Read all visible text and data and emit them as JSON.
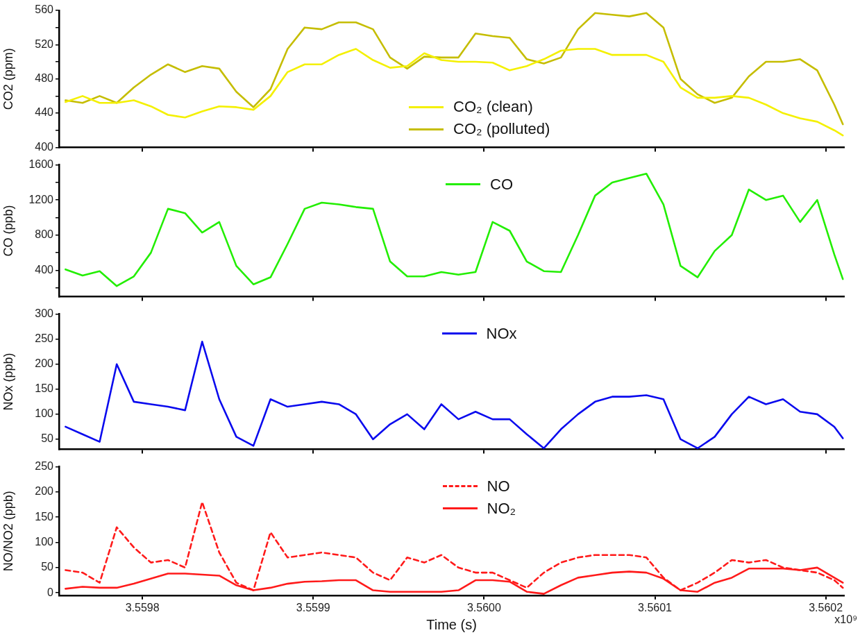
{
  "chart_data": [
    {
      "type": "line",
      "ylabel": "CO2 (ppm)",
      "legend": "bottom",
      "tick_labels": "y",
      "x": [
        3.559755,
        3.559765,
        3.559775,
        3.559785,
        3.559795,
        3.559805,
        3.559815,
        3.559825,
        3.559835,
        3.559845,
        3.559855,
        3.559865,
        3.559875,
        3.559885,
        3.559895,
        3.559905,
        3.559915,
        3.559925,
        3.559935,
        3.559945,
        3.559955,
        3.559965,
        3.559975,
        3.559985,
        3.559995,
        3.560005,
        3.560015,
        3.560025,
        3.560035,
        3.560045,
        3.560055,
        3.560065,
        3.560075,
        3.560085,
        3.560095,
        3.560105,
        3.560115,
        3.560125,
        3.560135,
        3.560145,
        3.560155,
        3.560165,
        3.560175,
        3.560185,
        3.560195,
        3.560205,
        3.56021
      ],
      "xlim": [
        3.5597512,
        3.5602107
      ],
      "xticks": [
        3.5598,
        3.5599,
        3.56,
        3.5601,
        3.5602
      ],
      "ylim": [
        400,
        560
      ],
      "yticks": [
        400,
        {
          "value": 420,
          "label": null
        },
        440,
        {
          "value": 460,
          "label": null
        },
        480,
        {
          "value": 500,
          "label": null
        },
        520,
        {
          "value": 540,
          "label": null
        },
        560
      ],
      "series": [
        {
          "name": "CO₂ (clean)",
          "color": "#f4f000",
          "values": [
            453,
            460,
            452,
            452,
            455,
            448,
            438,
            435,
            442,
            448,
            447,
            444,
            460,
            488,
            497,
            497,
            508,
            515,
            502,
            493,
            495,
            510,
            502,
            500,
            500,
            499,
            490,
            495,
            503,
            513,
            515,
            515,
            508,
            508,
            508,
            500,
            470,
            458,
            458,
            460,
            458,
            450,
            440,
            434,
            430,
            420,
            414
          ]
        },
        {
          "name": "CO₂ (polluted)",
          "color": "#c5bd00",
          "values": [
            455,
            452,
            460,
            452,
            470,
            485,
            497,
            488,
            495,
            492,
            465,
            447,
            468,
            515,
            540,
            538,
            546,
            546,
            538,
            505,
            492,
            506,
            505,
            505,
            533,
            530,
            528,
            503,
            498,
            505,
            538,
            557,
            555,
            553,
            557,
            540,
            480,
            462,
            452,
            458,
            483,
            500,
            500,
            503,
            490,
            450,
            427
          ]
        }
      ]
    },
    {
      "type": "line",
      "ylabel": "CO (ppb)",
      "legend": "top",
      "tick_labels": "y",
      "x": [
        3.559755,
        3.559765,
        3.559775,
        3.559785,
        3.559795,
        3.559805,
        3.559815,
        3.559825,
        3.559835,
        3.559845,
        3.559855,
        3.559865,
        3.559875,
        3.559885,
        3.559895,
        3.559905,
        3.559915,
        3.559925,
        3.559935,
        3.559945,
        3.559955,
        3.559965,
        3.559975,
        3.559985,
        3.559995,
        3.560005,
        3.560015,
        3.560025,
        3.560035,
        3.560045,
        3.560055,
        3.560065,
        3.560075,
        3.560085,
        3.560095,
        3.560105,
        3.560115,
        3.560125,
        3.560135,
        3.560145,
        3.560155,
        3.560165,
        3.560175,
        3.560185,
        3.560195,
        3.560205,
        3.56021
      ],
      "xlim": [
        3.5597512,
        3.5602107
      ],
      "xticks": [
        3.5598,
        3.5599,
        3.56,
        3.5601,
        3.5602
      ],
      "ylim": [
        100,
        1600
      ],
      "yticks": [
        {
          "value": 200,
          "label": null
        },
        400,
        {
          "value": 600,
          "label": null
        },
        800,
        {
          "value": 1000,
          "label": null
        },
        1200,
        {
          "value": 1400,
          "label": null
        },
        1600
      ],
      "series": [
        {
          "name": "CO",
          "color": "#22ee00",
          "values": [
            410,
            340,
            390,
            220,
            330,
            600,
            1100,
            1050,
            830,
            950,
            450,
            240,
            320,
            700,
            1100,
            1170,
            1150,
            1120,
            1100,
            500,
            330,
            330,
            380,
            350,
            380,
            950,
            850,
            500,
            390,
            380,
            800,
            1250,
            1400,
            1450,
            1500,
            1150,
            450,
            320,
            620,
            800,
            1320,
            1200,
            1250,
            950,
            1200,
            580,
            300
          ]
        }
      ]
    },
    {
      "type": "line",
      "ylabel": "NOx (ppb)",
      "legend": "top",
      "tick_labels": "y",
      "x": [
        3.559755,
        3.559765,
        3.559775,
        3.559785,
        3.559795,
        3.559805,
        3.559815,
        3.559825,
        3.559835,
        3.559845,
        3.559855,
        3.559865,
        3.559875,
        3.559885,
        3.559895,
        3.559905,
        3.559915,
        3.559925,
        3.559935,
        3.559945,
        3.559955,
        3.559965,
        3.559975,
        3.559985,
        3.559995,
        3.560005,
        3.560015,
        3.560025,
        3.560035,
        3.560045,
        3.560055,
        3.560065,
        3.560075,
        3.560085,
        3.560095,
        3.560105,
        3.560115,
        3.560125,
        3.560135,
        3.560145,
        3.560155,
        3.560165,
        3.560175,
        3.560185,
        3.560195,
        3.560205,
        3.56021
      ],
      "xlim": [
        3.5597512,
        3.5602107
      ],
      "xticks": [
        3.5598,
        3.5599,
        3.56,
        3.5601,
        3.5602
      ],
      "ylim": [
        30,
        300
      ],
      "yticks": [
        50,
        100,
        150,
        200,
        250,
        300
      ],
      "series": [
        {
          "name": "NOx",
          "color": "#0a0aee",
          "values": [
            75,
            60,
            45,
            200,
            125,
            120,
            115,
            108,
            245,
            130,
            55,
            37,
            130,
            115,
            120,
            125,
            120,
            100,
            50,
            80,
            100,
            70,
            120,
            90,
            105,
            90,
            90,
            60,
            32,
            70,
            100,
            125,
            135,
            135,
            138,
            130,
            50,
            32,
            55,
            100,
            135,
            120,
            130,
            105,
            100,
            75,
            52
          ]
        }
      ]
    },
    {
      "type": "line",
      "ylabel": "NO/NO2 (ppb)",
      "xlabel": "Time (s)",
      "legend": "top",
      "x": [
        3.559755,
        3.559765,
        3.559775,
        3.559785,
        3.559795,
        3.559805,
        3.559815,
        3.559825,
        3.559835,
        3.559845,
        3.559855,
        3.559865,
        3.559875,
        3.559885,
        3.559895,
        3.559905,
        3.559915,
        3.559925,
        3.559935,
        3.559945,
        3.559955,
        3.559965,
        3.559975,
        3.559985,
        3.559995,
        3.560005,
        3.560015,
        3.560025,
        3.560035,
        3.560045,
        3.560055,
        3.560065,
        3.560075,
        3.560085,
        3.560095,
        3.560105,
        3.560115,
        3.560125,
        3.560135,
        3.560145,
        3.560155,
        3.560165,
        3.560175,
        3.560185,
        3.560195,
        3.560205,
        3.56021
      ],
      "xlim": [
        3.5597512,
        3.5602107
      ],
      "xticks": [
        3.5598,
        3.5599,
        {
          "value": 3.56,
          "label": "3.5600"
        },
        3.5601,
        3.5602
      ],
      "annotations": [
        "x10⁹"
      ],
      "ylim": [
        -5,
        250
      ],
      "yticks": [
        0,
        50,
        100,
        150,
        200,
        250
      ],
      "series": [
        {
          "name": "NO",
          "color": "#ff1a1a",
          "line_style": "dashed",
          "values": [
            45,
            40,
            20,
            130,
            90,
            60,
            65,
            50,
            180,
            80,
            20,
            5,
            120,
            70,
            75,
            80,
            75,
            70,
            40,
            25,
            70,
            60,
            75,
            50,
            40,
            40,
            25,
            10,
            40,
            60,
            70,
            75,
            75,
            75,
            70,
            30,
            5,
            20,
            40,
            65,
            60,
            65,
            50,
            45,
            40,
            25,
            10
          ]
        },
        {
          "name": "NO₂",
          "color": "#ff1a1a",
          "line_style": "solid",
          "values": [
            8,
            12,
            10,
            10,
            18,
            28,
            38,
            38,
            36,
            34,
            15,
            5,
            10,
            18,
            22,
            23,
            25,
            25,
            5,
            2,
            2,
            2,
            2,
            5,
            25,
            25,
            22,
            2,
            -2,
            15,
            30,
            35,
            40,
            42,
            40,
            28,
            5,
            2,
            20,
            30,
            48,
            48,
            48,
            45,
            50,
            30,
            20
          ]
        }
      ]
    }
  ]
}
